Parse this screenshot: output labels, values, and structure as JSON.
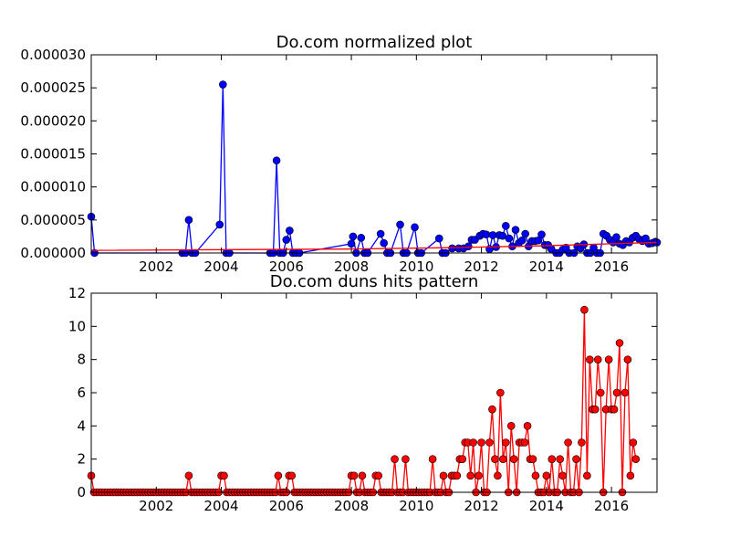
{
  "chart_data": [
    {
      "type": "line",
      "title": "Do.com normalized plot",
      "xlabel": "",
      "ylabel": "",
      "xlim": [
        2000.0,
        2017.4
      ],
      "ylim": [
        0,
        3e-05
      ],
      "x_ticks": [
        2002,
        2004,
        2006,
        2008,
        2010,
        2012,
        2014,
        2016
      ],
      "x_tick_labels": [
        "2002",
        "2004",
        "2006",
        "2008",
        "2010",
        "2012",
        "2014",
        "2016"
      ],
      "y_ticks": [
        0,
        5e-06,
        1e-05,
        1.5e-05,
        2e-05,
        2.5e-05,
        3e-05
      ],
      "y_tick_labels": [
        "0.000000",
        "0.000005",
        "0.000010",
        "0.000015",
        "0.000020",
        "0.000025",
        "0.000030"
      ],
      "grid": false,
      "series": [
        {
          "color": "#0000ff",
          "marker": "circle",
          "x": [
            2000.0,
            2000.1,
            2002.8,
            2002.9,
            2003.0,
            2003.1,
            2003.2,
            2003.95,
            2004.05,
            2004.15,
            2004.25,
            2005.5,
            2005.6,
            2005.7,
            2005.8,
            2005.9,
            2006.0,
            2006.1,
            2006.2,
            2006.3,
            2006.4,
            2008.0,
            2008.05,
            2008.15,
            2008.3,
            2008.4,
            2008.5,
            2008.9,
            2009.0,
            2009.1,
            2009.2,
            2009.5,
            2009.6,
            2009.7,
            2009.95,
            2010.05,
            2010.15,
            2010.7,
            2010.8,
            2010.9,
            2011.1,
            2011.3,
            2011.45,
            2011.6,
            2011.7,
            2011.8,
            2011.95,
            2012.05,
            2012.15,
            2012.25,
            2012.35,
            2012.45,
            2012.55,
            2012.65,
            2012.75,
            2012.85,
            2012.95,
            2013.05,
            2013.15,
            2013.25,
            2013.35,
            2013.45,
            2013.55,
            2013.65,
            2013.75,
            2013.85,
            2013.95,
            2014.05,
            2014.15,
            2014.3,
            2014.4,
            2014.5,
            2014.6,
            2014.7,
            2014.85,
            2014.95,
            2015.05,
            2015.15,
            2015.25,
            2015.35,
            2015.45,
            2015.55,
            2015.65,
            2015.75,
            2015.85,
            2015.95,
            2016.05,
            2016.15,
            2016.25,
            2016.35,
            2016.45,
            2016.55,
            2016.65,
            2016.75,
            2016.85,
            2016.95,
            2017.05,
            2017.15,
            2017.25,
            2017.35,
            2017.4
          ],
          "y": [
            5.5e-06,
            0,
            0,
            0,
            5e-06,
            0,
            0,
            4.3e-06,
            2.55e-05,
            0,
            0,
            0,
            0,
            1.4e-05,
            0,
            0,
            2e-06,
            3.4e-06,
            0,
            0,
            0,
            1.4e-06,
            2.5e-06,
            0,
            2.3e-06,
            0,
            0,
            2.9e-06,
            1.5e-06,
            0,
            0,
            4.3e-06,
            0,
            0,
            3.9e-06,
            0,
            0,
            2.2e-06,
            0,
            0,
            7e-07,
            7e-07,
            7e-07,
            1e-06,
            2e-06,
            2e-06,
            2.6e-06,
            2.9e-06,
            2.8e-06,
            6e-07,
            2.7e-06,
            9e-07,
            2.7e-06,
            2.6e-06,
            4.1e-06,
            2.2e-06,
            1e-06,
            3.5e-06,
            1.5e-06,
            1.9e-06,
            2.9e-06,
            1e-06,
            1.8e-06,
            1.8e-06,
            1.9e-06,
            2.8e-06,
            1.2e-06,
            1.2e-06,
            6e-07,
            0,
            0,
            5e-07,
            8e-07,
            0,
            0,
            1e-06,
            7e-07,
            1.3e-06,
            0,
            0,
            8e-07,
            0,
            0,
            2.9e-06,
            2.6e-06,
            2e-06,
            1.6e-06,
            2.4e-06,
            1.4e-06,
            1.2e-06,
            1.8e-06,
            1.6e-06,
            2.3e-06,
            2.6e-06,
            2.1e-06,
            1.8e-06,
            2.2e-06,
            1.4e-06,
            1.5e-06,
            1.7e-06,
            1.6e-06
          ]
        },
        {
          "color": "#ff0000",
          "marker": "none",
          "x": [
            2000.0,
            2008.0,
            2011.0,
            2014.0,
            2016.0,
            2017.4
          ],
          "y": [
            4e-07,
            6e-07,
            8e-07,
            1.1e-06,
            1.4e-06,
            1.6e-06
          ]
        }
      ]
    },
    {
      "type": "line",
      "title": "Do.com duns hits pattern",
      "xlabel": "",
      "ylabel": "",
      "xlim": [
        2000.0,
        2017.4
      ],
      "ylim": [
        0,
        12
      ],
      "x_ticks": [
        2002,
        2004,
        2006,
        2008,
        2010,
        2012,
        2014,
        2016
      ],
      "x_tick_labels": [
        "2002",
        "2004",
        "2006",
        "2008",
        "2010",
        "2012",
        "2014",
        "2016"
      ],
      "y_ticks": [
        0,
        2,
        4,
        6,
        8,
        10,
        12
      ],
      "y_tick_labels": [
        "0",
        "2",
        "4",
        "6",
        "8",
        "10",
        "12"
      ],
      "grid": false,
      "series": [
        {
          "color": "#ff0000",
          "marker": "circle",
          "marker_edge": "#000000",
          "start": 2000.0,
          "step": 0.08333,
          "values": [
            1,
            0,
            0,
            0,
            0,
            0,
            0,
            0,
            0,
            0,
            0,
            0,
            0,
            0,
            0,
            0,
            0,
            0,
            0,
            0,
            0,
            0,
            0,
            0,
            0,
            0,
            0,
            0,
            0,
            0,
            0,
            0,
            0,
            0,
            0,
            0,
            1,
            0,
            0,
            0,
            0,
            0,
            0,
            0,
            0,
            0,
            0,
            0,
            1,
            1,
            0,
            0,
            0,
            0,
            0,
            0,
            0,
            0,
            0,
            0,
            0,
            0,
            0,
            0,
            0,
            0,
            0,
            0,
            0,
            1,
            0,
            0,
            0,
            1,
            1,
            0,
            0,
            0,
            0,
            0,
            0,
            0,
            0,
            0,
            0,
            0,
            0,
            0,
            0,
            0,
            0,
            0,
            0,
            0,
            0,
            0,
            1,
            1,
            0,
            0,
            1,
            0,
            0,
            0,
            0,
            1,
            1,
            0,
            0,
            0,
            0,
            0,
            2,
            0,
            0,
            0,
            2,
            0,
            0,
            0,
            0,
            0,
            0,
            0,
            0,
            0,
            2,
            0,
            0,
            0,
            1,
            0,
            0,
            1,
            1,
            1,
            2,
            2,
            3,
            3,
            1,
            3,
            0,
            1,
            3,
            0,
            0,
            3,
            5,
            2,
            1,
            6,
            2,
            3,
            0,
            4,
            2,
            0,
            3,
            3,
            3,
            4,
            2,
            2,
            1,
            0,
            0,
            0,
            1,
            0,
            2,
            0,
            0,
            2,
            1,
            0,
            3,
            0,
            0,
            2,
            0,
            3,
            11,
            1,
            8,
            5,
            5,
            8,
            6,
            0,
            5,
            8,
            5,
            5,
            6,
            9,
            0,
            6,
            8,
            1,
            3,
            2
          ]
        }
      ]
    }
  ]
}
